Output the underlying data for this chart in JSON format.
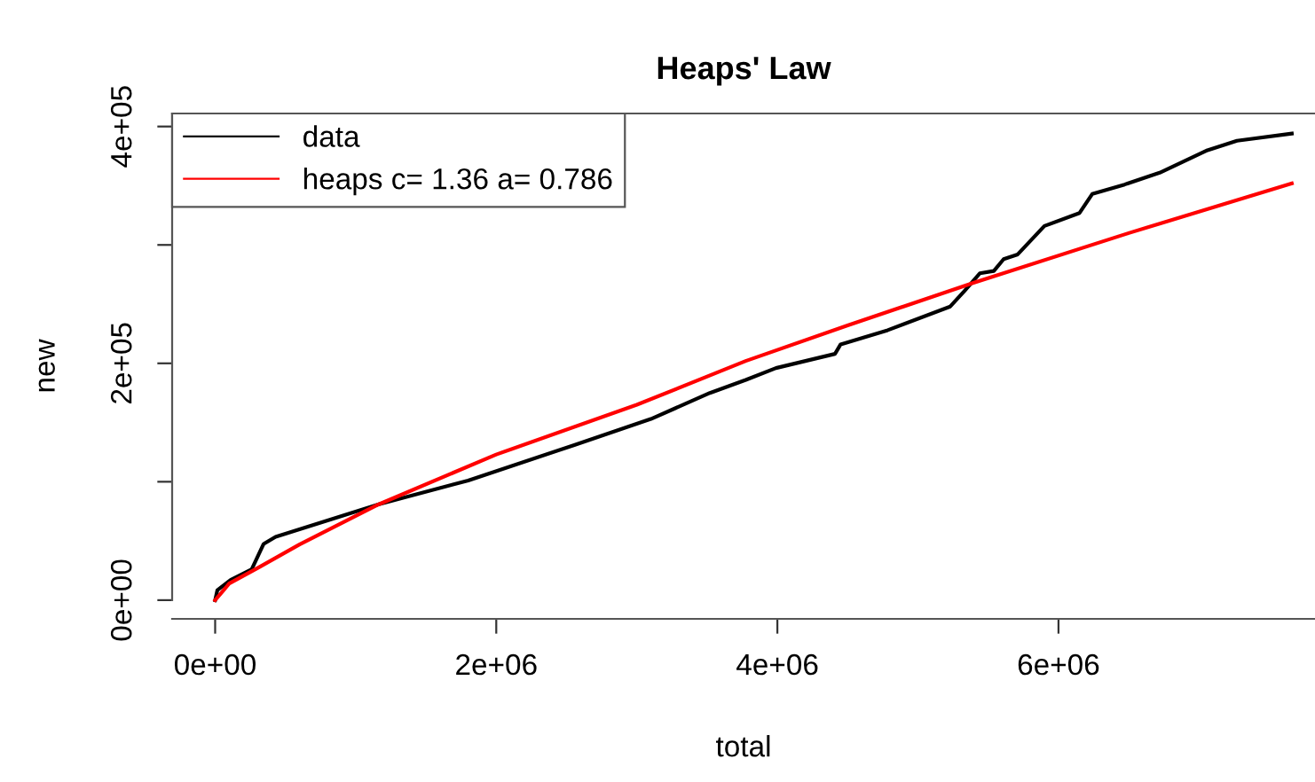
{
  "chart_data": {
    "type": "line",
    "title": "Heaps' Law",
    "xlabel": "total",
    "ylabel": "new",
    "xlim": [
      -306000,
      7825000
    ],
    "ylim": [
      -15800,
      411000
    ],
    "xticks": [
      {
        "value": 0,
        "label": "0e+00"
      },
      {
        "value": 2000000,
        "label": "2e+06"
      },
      {
        "value": 4000000,
        "label": "4e+06"
      },
      {
        "value": 6000000,
        "label": "6e+06"
      }
    ],
    "yticks": [
      {
        "value": 0,
        "label": "0e+00"
      },
      {
        "value": 100000,
        "label": null
      },
      {
        "value": 200000,
        "label": "2e+05"
      },
      {
        "value": 300000,
        "label": null
      },
      {
        "value": 400000,
        "label": "4e+05"
      }
    ],
    "grid": false,
    "legend": "top left",
    "marker": "none",
    "line_style": "solid",
    "series": [
      {
        "name": "data",
        "color": "#000000",
        "x": [
          0,
          16000,
          110000,
          260000,
          345000,
          430000,
          1165000,
          1800000,
          2555000,
          3100000,
          3520000,
          3775000,
          3990000,
          4410000,
          4450000,
          4785000,
          5230000,
          5330000,
          5440000,
          5540000,
          5610000,
          5710000,
          5900000,
          6150000,
          6240000,
          6470000,
          6720000,
          7060000,
          7270000,
          7660000
        ],
        "values": [
          0,
          8500,
          17000,
          26000,
          47500,
          53500,
          81000,
          101000,
          131000,
          153000,
          175000,
          186000,
          196000,
          208000,
          216000,
          228000,
          248000,
          261000,
          276000,
          278000,
          288000,
          292000,
          316000,
          327000,
          343000,
          351000,
          361000,
          380000,
          388000,
          394000
        ]
      },
      {
        "name": "heaps c= 1.36 a= 0.786",
        "color": "#ff0000",
        "x": [
          0,
          100000,
          300000,
          600000,
          1165000,
          2000000,
          3000000,
          3775000,
          4500000,
          5395000,
          6500000,
          7660000
        ],
        "values": [
          0,
          14000,
          27000,
          47000,
          81000,
          123000,
          165000,
          202000,
          232000,
          268000,
          310000,
          352000
        ]
      }
    ]
  }
}
